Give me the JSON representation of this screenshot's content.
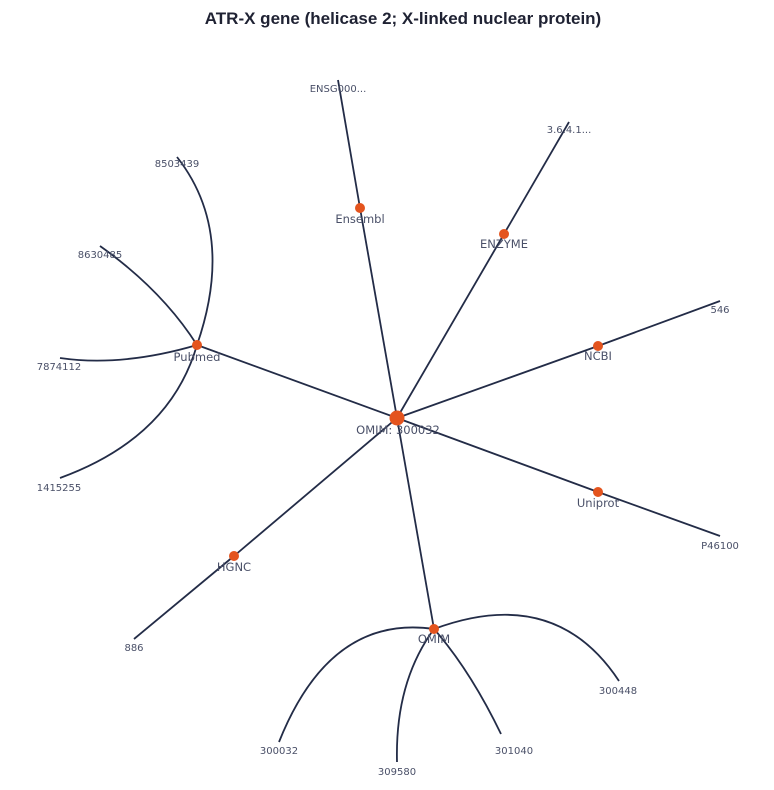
{
  "title": "ATR-X gene (helicase 2; X-linked nuclear protein)",
  "colors": {
    "edge": "#232c47",
    "node": "#e4541e",
    "label": "#4a5068"
  },
  "root": {
    "id": "root",
    "label": "OMIM: 300032"
  },
  "hubs": [
    {
      "id": "ensembl",
      "label": "Ensembl",
      "leaves": [
        "ENSG000..."
      ]
    },
    {
      "id": "enzyme",
      "label": "ENZYME",
      "leaves": [
        "3.6.4.1..."
      ]
    },
    {
      "id": "ncbi",
      "label": "NCBI",
      "leaves": [
        "546"
      ]
    },
    {
      "id": "uniprot",
      "label": "Uniprot",
      "leaves": [
        "P46100"
      ]
    },
    {
      "id": "omim",
      "label": "OMIM",
      "leaves": [
        "300448",
        "301040",
        "309580",
        "300032"
      ]
    },
    {
      "id": "hgnc",
      "label": "HGNC",
      "leaves": [
        "886"
      ]
    },
    {
      "id": "pubmed",
      "label": "Pubmed",
      "leaves": [
        "1415255",
        "7874112",
        "8630485",
        "8503439"
      ]
    }
  ]
}
